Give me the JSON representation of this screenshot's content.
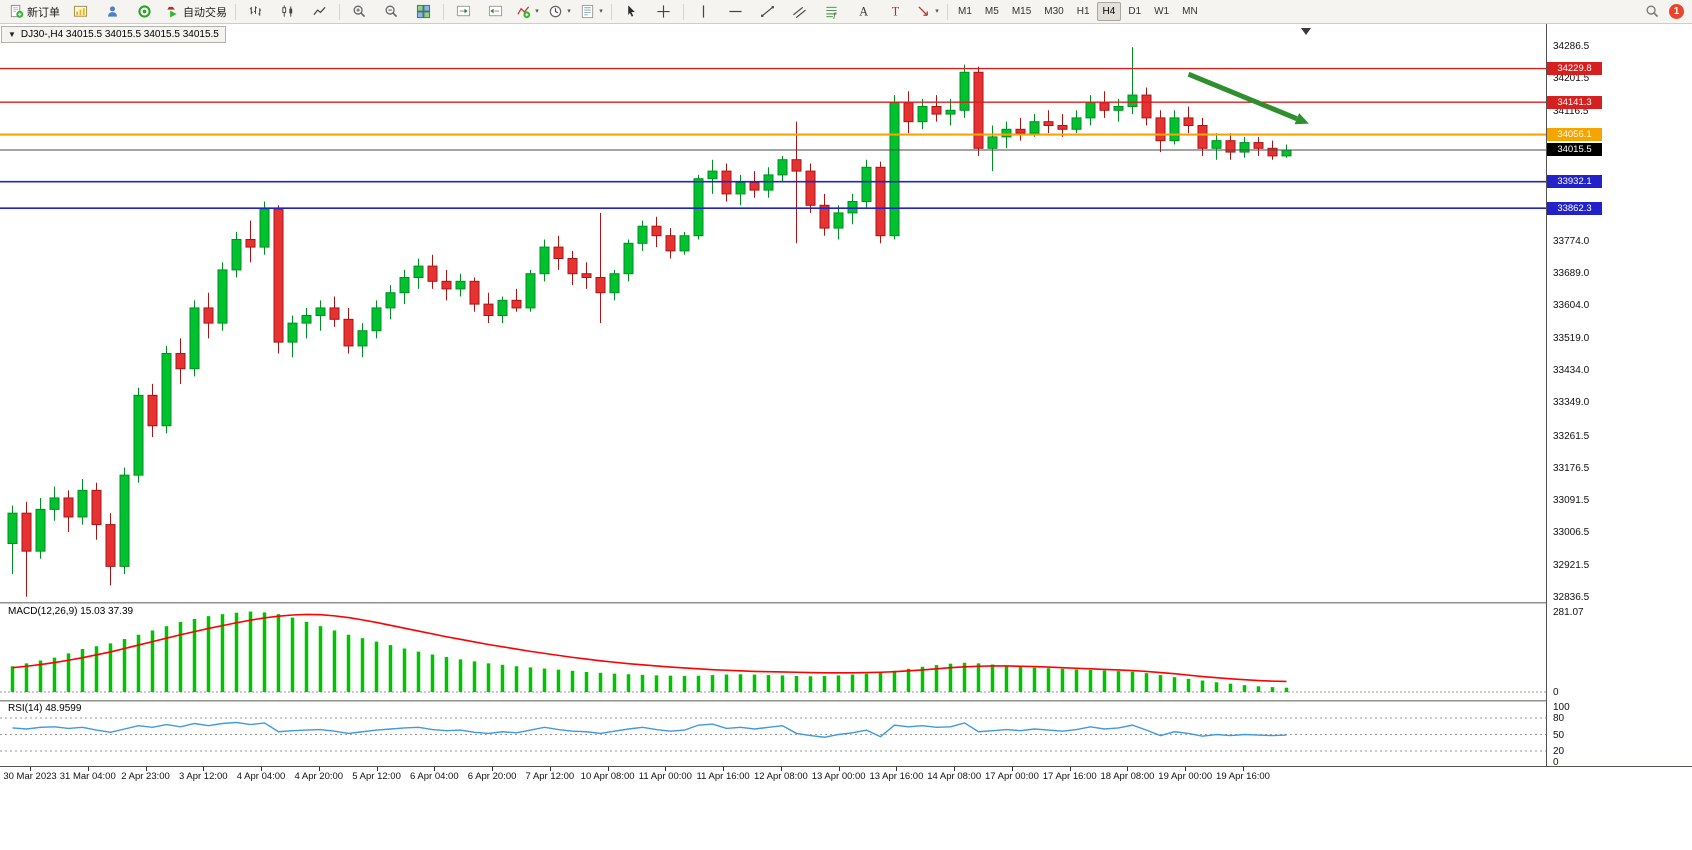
{
  "toolbar": {
    "new_order_label": "新订单",
    "autotrading_label": "自动交易",
    "timeframes": [
      "M1",
      "M5",
      "M15",
      "M30",
      "H1",
      "H4",
      "D1",
      "W1",
      "MN"
    ],
    "active_timeframe": "H4",
    "badge": "1"
  },
  "colors": {
    "up_fill": "#00c22e",
    "up_stroke": "#00württ8f22",
    "down_fill": "#e63232",
    "down_stroke": "#a81616",
    "macd_bar": "#00c400",
    "macd_signal": "#ff0000",
    "rsi_line": "#3f9ade",
    "arrow_green": "#2f8f2f"
  },
  "chart_data": [
    {
      "type": "candlestick",
      "symbol": "DJ30-",
      "period": "H4",
      "ohlc_bar_text": "DJ30-,H4 34015.5 34015.5 34015.5 34015.5",
      "current_price": "34015.5",
      "y_range": [
        32821,
        34347
      ],
      "y_axis_labels": [
        "34286.5",
        "34201.5",
        "34116.5",
        "33774.0",
        "33689.0",
        "33604.0",
        "33519.0",
        "33434.0",
        "33349.0",
        "33261.5",
        "33176.5",
        "33091.5",
        "33006.5",
        "32921.5",
        "32836.5"
      ],
      "x_labels": [
        "30 Mar 2023",
        "31 Mar 04:00",
        "2 Apr 23:00",
        "3 Apr 12:00",
        "4 Apr 04:00",
        "4 Apr 20:00",
        "5 Apr 12:00",
        "6 Apr 04:00",
        "6 Apr 20:00",
        "7 Apr 12:00",
        "10 Apr 08:00",
        "11 Apr 00:00",
        "11 Apr 16:00",
        "12 Apr 08:00",
        "13 Apr 00:00",
        "13 Apr 16:00",
        "14 Apr 08:00",
        "17 Apr 00:00",
        "17 Apr 16:00",
        "18 Apr 08:00",
        "19 Apr 00:00",
        "19 Apr 16:00"
      ],
      "horizontal_lines": [
        {
          "price": 34229.8,
          "label": "34229.8",
          "color": "#d62020",
          "width": 1.4
        },
        {
          "price": 34141.3,
          "label": "34141.3",
          "color": "#d62020",
          "width": 1.4
        },
        {
          "price": 34056.1,
          "label": "34056.1",
          "color": "#f5a400",
          "width": 2.2
        },
        {
          "price": 34015.5,
          "label": "34015.5",
          "color": "#4a4a4a",
          "width": 1,
          "tag": "#000000"
        },
        {
          "price": 33932.1,
          "label": "33932.1",
          "color": "#2222c8",
          "width": 1.6
        },
        {
          "price": 33862.3,
          "label": "33862.3",
          "color": "#2222c8",
          "width": 1.6
        }
      ],
      "arrow_annotation": {
        "from_bar": 84,
        "from_price": 34215,
        "to_bar": 92.6,
        "to_price": 34085
      },
      "candles": [
        [
          32980,
          33080,
          32900,
          33060
        ],
        [
          33060,
          33090,
          32840,
          32960
        ],
        [
          32960,
          33100,
          32940,
          33070
        ],
        [
          33070,
          33130,
          33040,
          33100
        ],
        [
          33100,
          33120,
          33010,
          33050
        ],
        [
          33050,
          33150,
          33030,
          33120
        ],
        [
          33120,
          33140,
          32990,
          33030
        ],
        [
          33030,
          33060,
          32870,
          32920
        ],
        [
          32920,
          33180,
          32900,
          33160
        ],
        [
          33160,
          33390,
          33140,
          33370
        ],
        [
          33370,
          33400,
          33260,
          33290
        ],
        [
          33290,
          33500,
          33270,
          33480
        ],
        [
          33480,
          33520,
          33400,
          33440
        ],
        [
          33440,
          33620,
          33420,
          33600
        ],
        [
          33600,
          33640,
          33520,
          33560
        ],
        [
          33560,
          33720,
          33540,
          33700
        ],
        [
          33700,
          33800,
          33680,
          33780
        ],
        [
          33780,
          33830,
          33720,
          33760
        ],
        [
          33760,
          33880,
          33740,
          33860
        ],
        [
          33860,
          33870,
          33480,
          33510
        ],
        [
          33510,
          33580,
          33470,
          33560
        ],
        [
          33560,
          33600,
          33520,
          33580
        ],
        [
          33580,
          33620,
          33540,
          33600
        ],
        [
          33600,
          33630,
          33550,
          33570
        ],
        [
          33570,
          33600,
          33480,
          33500
        ],
        [
          33500,
          33560,
          33470,
          33540
        ],
        [
          33540,
          33620,
          33520,
          33600
        ],
        [
          33600,
          33660,
          33570,
          33640
        ],
        [
          33640,
          33700,
          33610,
          33680
        ],
        [
          33680,
          33730,
          33650,
          33710
        ],
        [
          33710,
          33740,
          33650,
          33670
        ],
        [
          33670,
          33700,
          33620,
          33650
        ],
        [
          33650,
          33690,
          33630,
          33670
        ],
        [
          33670,
          33680,
          33590,
          33610
        ],
        [
          33610,
          33640,
          33560,
          33580
        ],
        [
          33580,
          33630,
          33560,
          33620
        ],
        [
          33620,
          33650,
          33590,
          33600
        ],
        [
          33600,
          33700,
          33590,
          33690
        ],
        [
          33690,
          33780,
          33670,
          33760
        ],
        [
          33760,
          33790,
          33700,
          33730
        ],
        [
          33730,
          33750,
          33660,
          33690
        ],
        [
          33690,
          33720,
          33650,
          33680
        ],
        [
          33680,
          33850,
          33560,
          33640
        ],
        [
          33640,
          33700,
          33620,
          33690
        ],
        [
          33690,
          33780,
          33670,
          33770
        ],
        [
          33770,
          33830,
          33750,
          33815
        ],
        [
          33815,
          33840,
          33760,
          33790
        ],
        [
          33790,
          33810,
          33730,
          33750
        ],
        [
          33750,
          33800,
          33740,
          33790
        ],
        [
          33790,
          33950,
          33780,
          33940
        ],
        [
          33940,
          33990,
          33900,
          33960
        ],
        [
          33960,
          33980,
          33880,
          33900
        ],
        [
          33900,
          33950,
          33870,
          33930
        ],
        [
          33930,
          33960,
          33890,
          33910
        ],
        [
          33910,
          33970,
          33890,
          33950
        ],
        [
          33950,
          34000,
          33930,
          33990
        ],
        [
          33990,
          34090,
          33770,
          33960
        ],
        [
          33960,
          33980,
          33850,
          33870
        ],
        [
          33870,
          33900,
          33790,
          33810
        ],
        [
          33810,
          33870,
          33780,
          33850
        ],
        [
          33850,
          33900,
          33820,
          33880
        ],
        [
          33880,
          33990,
          33860,
          33970
        ],
        [
          33970,
          33985,
          33770,
          33790
        ],
        [
          33790,
          34160,
          33780,
          34140
        ],
        [
          34140,
          34170,
          34060,
          34090
        ],
        [
          34090,
          34150,
          34070,
          34130
        ],
        [
          34130,
          34160,
          34090,
          34110
        ],
        [
          34110,
          34150,
          34080,
          34120
        ],
        [
          34120,
          34240,
          34100,
          34220
        ],
        [
          34220,
          34235,
          34000,
          34020
        ],
        [
          34020,
          34080,
          33960,
          34050
        ],
        [
          34050,
          34090,
          34020,
          34070
        ],
        [
          34070,
          34100,
          34040,
          34060
        ],
        [
          34060,
          34110,
          34050,
          34090
        ],
        [
          34090,
          34120,
          34060,
          34080
        ],
        [
          34080,
          34110,
          34050,
          34070
        ],
        [
          34070,
          34120,
          34060,
          34100
        ],
        [
          34100,
          34160,
          34080,
          34140
        ],
        [
          34140,
          34170,
          34100,
          34120
        ],
        [
          34120,
          34150,
          34090,
          34130
        ],
        [
          34130,
          34286,
          34110,
          34160
        ],
        [
          34160,
          34180,
          34080,
          34100
        ],
        [
          34100,
          34120,
          34010,
          34040
        ],
        [
          34040,
          34120,
          34030,
          34100
        ],
        [
          34100,
          34130,
          34060,
          34080
        ],
        [
          34080,
          34100,
          34000,
          34020
        ],
        [
          34020,
          34060,
          33990,
          34040
        ],
        [
          34040,
          34060,
          33990,
          34010
        ],
        [
          34010,
          34050,
          33995,
          34035
        ],
        [
          34035,
          34050,
          34000,
          34020
        ],
        [
          34020,
          34040,
          33990,
          34000
        ],
        [
          34000,
          34030,
          33995,
          34015.5
        ]
      ]
    },
    {
      "type": "bar",
      "name": "MACD",
      "label": "MACD(12,26,9) 15.03 37.39",
      "macd_value": "15.03",
      "signal_value": "37.39",
      "y_axis_labels": [
        "281.07",
        "0"
      ],
      "ylim": [
        0,
        290
      ],
      "histogram": [
        90,
        100,
        110,
        120,
        135,
        150,
        160,
        170,
        185,
        200,
        215,
        230,
        245,
        255,
        265,
        272,
        277,
        281,
        278,
        272,
        260,
        245,
        230,
        215,
        200,
        188,
        176,
        164,
        152,
        141,
        131,
        122,
        114,
        107,
        100,
        95,
        90,
        86,
        82,
        78,
        74,
        70,
        67,
        64,
        62,
        60,
        58,
        57,
        56,
        57,
        59,
        61,
        62,
        61,
        59,
        58,
        56,
        55,
        56,
        58,
        61,
        64,
        68,
        74,
        81,
        88,
        94,
        99,
        102,
        100,
        96,
        92,
        88,
        85,
        83,
        81,
        79,
        77,
        75,
        73,
        71,
        66,
        59,
        52,
        46,
        40,
        34,
        29,
        24,
        20,
        17,
        15
      ],
      "signal": [
        85,
        90,
        96,
        103,
        111,
        120,
        130,
        140,
        152,
        164,
        176,
        188,
        200,
        211,
        222,
        232,
        242,
        251,
        259,
        265,
        269,
        271,
        270,
        266,
        260,
        252,
        243,
        233,
        223,
        213,
        203,
        193,
        184,
        175,
        166,
        158,
        150,
        142,
        135,
        128,
        121,
        115,
        109,
        104,
        99,
        95,
        91,
        87,
        84,
        81,
        78,
        76,
        74,
        72,
        71,
        70,
        69,
        68,
        67,
        67,
        67,
        68,
        69,
        71,
        74,
        77,
        81,
        85,
        88,
        90,
        91,
        91,
        90,
        89,
        87,
        85,
        83,
        81,
        79,
        77,
        75,
        72,
        68,
        64,
        59,
        54,
        50,
        46,
        43,
        40,
        38,
        37
      ]
    },
    {
      "type": "line",
      "name": "RSI",
      "label": "RSI(14) 48.9599",
      "value": "48.9599",
      "y_axis_labels": [
        "100",
        "80",
        "50",
        "20",
        "0"
      ],
      "levels": [
        80,
        50,
        20
      ],
      "ylim": [
        0,
        100
      ],
      "values": [
        62,
        60,
        63,
        64,
        61,
        63,
        58,
        54,
        60,
        66,
        63,
        68,
        64,
        70,
        66,
        70,
        72,
        68,
        71,
        55,
        57,
        58,
        59,
        56,
        52,
        55,
        58,
        60,
        62,
        63,
        59,
        57,
        58,
        54,
        52,
        55,
        53,
        58,
        63,
        59,
        56,
        55,
        52,
        56,
        60,
        63,
        59,
        56,
        58,
        67,
        69,
        61,
        63,
        60,
        63,
        66,
        52,
        48,
        45,
        50,
        53,
        58,
        46,
        67,
        64,
        66,
        63,
        64,
        71,
        55,
        57,
        59,
        57,
        60,
        58,
        56,
        59,
        64,
        60,
        62,
        67,
        58,
        48,
        55,
        52,
        47,
        50,
        48,
        50,
        49,
        48,
        48.96
      ]
    }
  ]
}
